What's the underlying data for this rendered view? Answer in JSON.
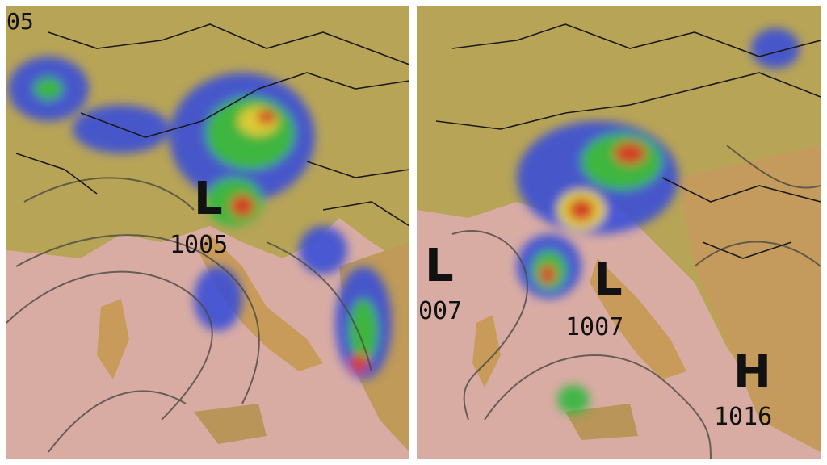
{
  "panels": [
    {
      "labels": [
        "05",
        "L",
        "1005"
      ]
    },
    {
      "labels": [
        "L",
        "007",
        "L",
        "1007",
        "H",
        "1016"
      ]
    }
  ]
}
